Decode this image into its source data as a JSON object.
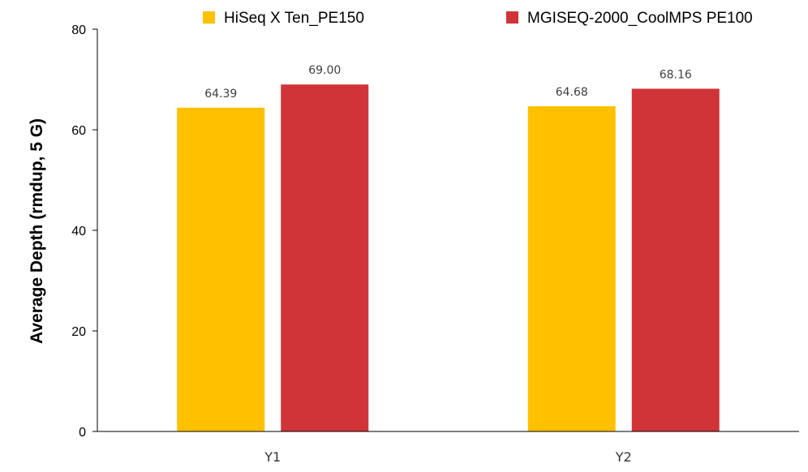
{
  "chart_data": {
    "type": "bar",
    "categories": [
      "Y1",
      "Y2"
    ],
    "series": [
      {
        "name": "HiSeq X Ten_PE150",
        "values": [
          64.39,
          64.68
        ],
        "labels": [
          "64.39",
          "64.68"
        ],
        "color": "#FFC000"
      },
      {
        "name": "MGISEQ-2000_CoolMPS PE100",
        "values": [
          69.0,
          68.16
        ],
        "labels": [
          "69.00",
          "68.16"
        ],
        "color": "#D13438"
      }
    ],
    "ylabel": "Average Depth (rmdup, 5 G)",
    "xlabel": "",
    "ylim": [
      0,
      80
    ],
    "yticks": [
      0,
      20,
      40,
      60,
      80
    ],
    "grid": false,
    "legend": "top"
  }
}
